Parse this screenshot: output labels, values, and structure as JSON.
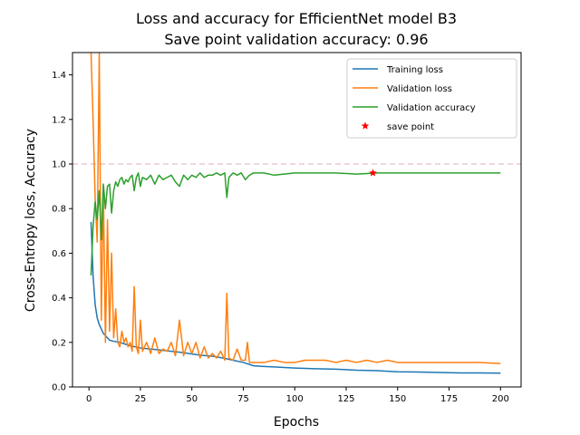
{
  "chart_data": {
    "type": "line",
    "title": "Loss and accuracy for EfficientNet model B3",
    "subtitle": "Save point validation accuracy: 0.96",
    "xlabel": "Epochs",
    "ylabel": "Cross-Entropy loss, Accuracy",
    "xlim": [
      -8,
      210
    ],
    "ylim": [
      0,
      1.5
    ],
    "xticks": [
      0,
      25,
      50,
      75,
      100,
      125,
      150,
      175,
      200
    ],
    "yticks": [
      0.0,
      0.2,
      0.4,
      0.6,
      0.8,
      1.0,
      1.2,
      1.4
    ],
    "reference_line": {
      "y": 1.0,
      "style": "dashed",
      "color": "#e8c8d0"
    },
    "grid": false,
    "legend_position": "top-right",
    "series": [
      {
        "name": "Training loss",
        "color": "#1f77b4",
        "points": [
          [
            1,
            0.74
          ],
          [
            2,
            0.5
          ],
          [
            3,
            0.37
          ],
          [
            4,
            0.31
          ],
          [
            5,
            0.28
          ],
          [
            6,
            0.26
          ],
          [
            7,
            0.24
          ],
          [
            8,
            0.23
          ],
          [
            10,
            0.21
          ],
          [
            12,
            0.205
          ],
          [
            15,
            0.2
          ],
          [
            20,
            0.185
          ],
          [
            25,
            0.175
          ],
          [
            30,
            0.17
          ],
          [
            35,
            0.165
          ],
          [
            40,
            0.16
          ],
          [
            45,
            0.155
          ],
          [
            50,
            0.148
          ],
          [
            55,
            0.142
          ],
          [
            60,
            0.138
          ],
          [
            65,
            0.13
          ],
          [
            70,
            0.12
          ],
          [
            75,
            0.11
          ],
          [
            80,
            0.095
          ],
          [
            85,
            0.092
          ],
          [
            90,
            0.09
          ],
          [
            100,
            0.085
          ],
          [
            110,
            0.082
          ],
          [
            120,
            0.08
          ],
          [
            130,
            0.075
          ],
          [
            140,
            0.073
          ],
          [
            150,
            0.068
          ],
          [
            160,
            0.067
          ],
          [
            170,
            0.065
          ],
          [
            180,
            0.063
          ],
          [
            190,
            0.063
          ],
          [
            200,
            0.062
          ]
        ]
      },
      {
        "name": "Validation loss",
        "color": "#ff7f0e",
        "points": [
          [
            1,
            1.5
          ],
          [
            2,
            1.2
          ],
          [
            3,
            0.85
          ],
          [
            4,
            0.65
          ],
          [
            5,
            1.5
          ],
          [
            6,
            0.3
          ],
          [
            7,
            0.9
          ],
          [
            8,
            0.2
          ],
          [
            9,
            0.75
          ],
          [
            10,
            0.25
          ],
          [
            11,
            0.6
          ],
          [
            12,
            0.22
          ],
          [
            13,
            0.35
          ],
          [
            14,
            0.2
          ],
          [
            15,
            0.18
          ],
          [
            16,
            0.25
          ],
          [
            17,
            0.2
          ],
          [
            18,
            0.22
          ],
          [
            19,
            0.18
          ],
          [
            20,
            0.2
          ],
          [
            21,
            0.16
          ],
          [
            22,
            0.45
          ],
          [
            23,
            0.18
          ],
          [
            24,
            0.15
          ],
          [
            25,
            0.3
          ],
          [
            26,
            0.16
          ],
          [
            28,
            0.2
          ],
          [
            30,
            0.15
          ],
          [
            32,
            0.22
          ],
          [
            34,
            0.15
          ],
          [
            36,
            0.17
          ],
          [
            38,
            0.16
          ],
          [
            40,
            0.2
          ],
          [
            42,
            0.14
          ],
          [
            44,
            0.3
          ],
          [
            46,
            0.14
          ],
          [
            48,
            0.2
          ],
          [
            50,
            0.15
          ],
          [
            52,
            0.2
          ],
          [
            54,
            0.13
          ],
          [
            56,
            0.18
          ],
          [
            58,
            0.13
          ],
          [
            60,
            0.15
          ],
          [
            62,
            0.13
          ],
          [
            64,
            0.16
          ],
          [
            66,
            0.12
          ],
          [
            67,
            0.42
          ],
          [
            68,
            0.13
          ],
          [
            70,
            0.12
          ],
          [
            72,
            0.17
          ],
          [
            74,
            0.12
          ],
          [
            76,
            0.12
          ],
          [
            77,
            0.2
          ],
          [
            78,
            0.11
          ],
          [
            80,
            0.11
          ],
          [
            85,
            0.11
          ],
          [
            90,
            0.12
          ],
          [
            95,
            0.11
          ],
          [
            100,
            0.11
          ],
          [
            105,
            0.12
          ],
          [
            110,
            0.12
          ],
          [
            115,
            0.12
          ],
          [
            120,
            0.11
          ],
          [
            125,
            0.12
          ],
          [
            130,
            0.11
          ],
          [
            135,
            0.12
          ],
          [
            140,
            0.11
          ],
          [
            145,
            0.12
          ],
          [
            150,
            0.11
          ],
          [
            160,
            0.11
          ],
          [
            170,
            0.11
          ],
          [
            180,
            0.11
          ],
          [
            190,
            0.11
          ],
          [
            200,
            0.105
          ]
        ]
      },
      {
        "name": "Validation accuracy",
        "color": "#2ca02c",
        "points": [
          [
            1,
            0.5
          ],
          [
            2,
            0.72
          ],
          [
            3,
            0.83
          ],
          [
            4,
            0.75
          ],
          [
            5,
            0.88
          ],
          [
            6,
            0.66
          ],
          [
            7,
            0.91
          ],
          [
            8,
            0.8
          ],
          [
            9,
            0.9
          ],
          [
            10,
            0.91
          ],
          [
            11,
            0.78
          ],
          [
            12,
            0.88
          ],
          [
            13,
            0.92
          ],
          [
            14,
            0.9
          ],
          [
            15,
            0.93
          ],
          [
            16,
            0.94
          ],
          [
            17,
            0.91
          ],
          [
            18,
            0.93
          ],
          [
            19,
            0.92
          ],
          [
            20,
            0.94
          ],
          [
            21,
            0.95
          ],
          [
            22,
            0.88
          ],
          [
            23,
            0.94
          ],
          [
            24,
            0.96
          ],
          [
            25,
            0.9
          ],
          [
            26,
            0.94
          ],
          [
            28,
            0.93
          ],
          [
            30,
            0.95
          ],
          [
            32,
            0.91
          ],
          [
            34,
            0.95
          ],
          [
            36,
            0.93
          ],
          [
            38,
            0.94
          ],
          [
            40,
            0.95
          ],
          [
            42,
            0.92
          ],
          [
            44,
            0.9
          ],
          [
            46,
            0.95
          ],
          [
            48,
            0.93
          ],
          [
            50,
            0.95
          ],
          [
            52,
            0.94
          ],
          [
            54,
            0.96
          ],
          [
            56,
            0.94
          ],
          [
            58,
            0.95
          ],
          [
            60,
            0.95
          ],
          [
            62,
            0.96
          ],
          [
            64,
            0.95
          ],
          [
            66,
            0.96
          ],
          [
            67,
            0.85
          ],
          [
            68,
            0.94
          ],
          [
            70,
            0.96
          ],
          [
            72,
            0.95
          ],
          [
            74,
            0.96
          ],
          [
            76,
            0.93
          ],
          [
            78,
            0.95
          ],
          [
            80,
            0.96
          ],
          [
            85,
            0.96
          ],
          [
            90,
            0.95
          ],
          [
            100,
            0.96
          ],
          [
            110,
            0.96
          ],
          [
            120,
            0.96
          ],
          [
            130,
            0.955
          ],
          [
            140,
            0.96
          ],
          [
            150,
            0.96
          ],
          [
            160,
            0.96
          ],
          [
            170,
            0.96
          ],
          [
            180,
            0.96
          ],
          [
            190,
            0.96
          ],
          [
            200,
            0.96
          ]
        ]
      }
    ],
    "save_point": {
      "name": "save point",
      "x": 138,
      "y": 0.96,
      "color": "#ff0000",
      "marker": "star"
    }
  }
}
